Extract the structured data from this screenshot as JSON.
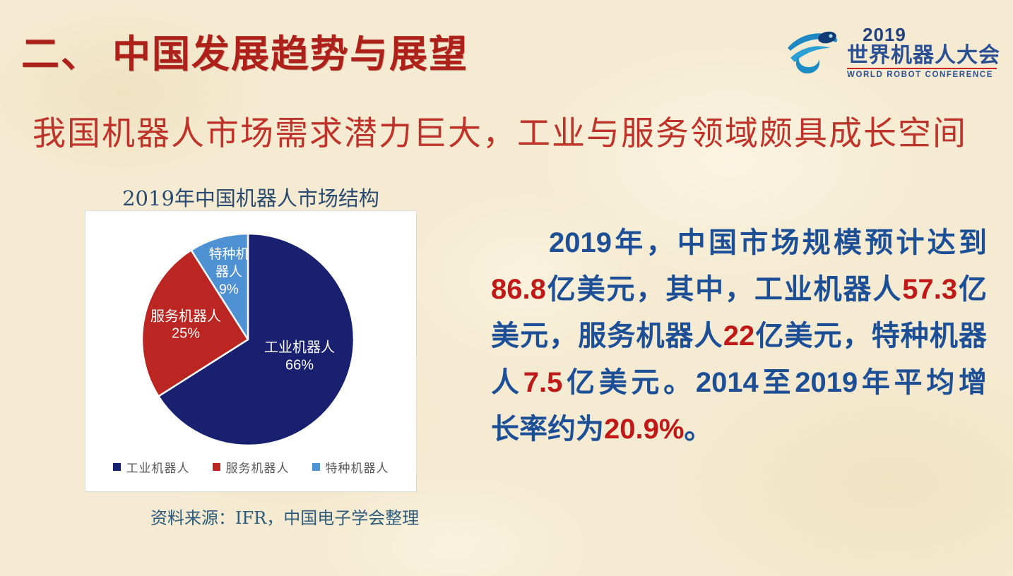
{
  "header": {
    "title": "二、 中国发展趋势与展望"
  },
  "logo": {
    "year": "2019",
    "title_cn": "世界机器人大会",
    "title_en": "WORLD ROBOT CONFERENCE"
  },
  "subtitle": "我国机器人市场需求潜力巨大，工业与服务领域颇具成长空间",
  "chart_data": {
    "type": "pie",
    "title": "2019年中国机器人市场结构",
    "start_angle": "12-o-clock",
    "direction": "clockwise",
    "legend_position": "bottom",
    "slices": [
      {
        "label": "工业机器人",
        "percent": 66,
        "color": "#19206f",
        "label_lines": [
          "工业机器人",
          "66%"
        ]
      },
      {
        "label": "服务机器人",
        "percent": 25,
        "color": "#bb2622",
        "label_lines": [
          "服务机器人",
          "25%"
        ]
      },
      {
        "label": "特种机器人",
        "percent": 9,
        "color": "#4e92d3",
        "label_lines": [
          "特种机",
          "器人",
          "9%"
        ]
      }
    ],
    "source": "资料来源：IFR，中国电子学会整理"
  },
  "paragraph": {
    "lines": [
      {
        "indent": true,
        "justify": true,
        "segments": [
          {
            "text": "2019年，中国市场规模预计达到",
            "color": "blue"
          }
        ]
      },
      {
        "indent": false,
        "justify": true,
        "segments": [
          {
            "text": "86.8",
            "color": "red"
          },
          {
            "text": "亿美元，其中，工业机器人",
            "color": "blue"
          },
          {
            "text": "57.3",
            "color": "red"
          },
          {
            "text": "亿",
            "color": "blue"
          }
        ]
      },
      {
        "indent": false,
        "justify": true,
        "segments": [
          {
            "text": "美元，服务机器人",
            "color": "blue"
          },
          {
            "text": "22",
            "color": "red"
          },
          {
            "text": "亿美元，特种机器",
            "color": "blue"
          }
        ]
      },
      {
        "indent": false,
        "justify": true,
        "segments": [
          {
            "text": "人",
            "color": "blue"
          },
          {
            "text": "7.5",
            "color": "red"
          },
          {
            "text": "亿美元。2014至2019年平均增",
            "color": "blue"
          }
        ]
      },
      {
        "indent": false,
        "justify": false,
        "segments": [
          {
            "text": "长率约为",
            "color": "blue"
          },
          {
            "text": "20.9%",
            "color": "red"
          },
          {
            "text": "。",
            "color": "blue"
          }
        ]
      }
    ]
  },
  "colors": {
    "title_red": "#ae211a",
    "subtitle_red": "#bf342a",
    "body_blue": "#1d4f97",
    "number_red": "#c01a18",
    "chart_title_blue": "#2a4a70",
    "source_blue": "#2e5b7b",
    "legend_gray": "#595959",
    "logo_blue": "#2a4f93",
    "background": "#f5ebd2"
  }
}
